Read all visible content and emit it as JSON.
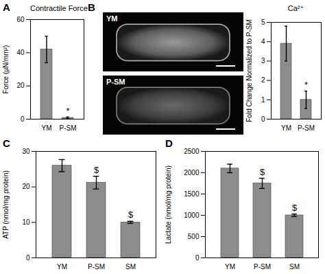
{
  "chart_data": [
    {
      "type": "bar",
      "panel": "A",
      "title": "Contractile Force",
      "y_label": "Force (μN/mm²)",
      "categories": [
        "YM",
        "P-SM"
      ],
      "values": [
        42,
        0.8
      ],
      "errors": [
        8,
        0.5
      ],
      "color": "#8c8c8c",
      "ylim": [
        0,
        60
      ],
      "yticks": [
        0,
        20,
        40,
        60
      ],
      "annotations": [
        {
          "category": "P-SM",
          "text": "*"
        }
      ]
    },
    {
      "type": "image",
      "panel": "B",
      "labels": [
        "YM",
        "P-SM"
      ]
    },
    {
      "type": "bar",
      "title": "Ca²⁺",
      "y_label": "Fold Change Normalized to P-SM",
      "categories": [
        "YM",
        "P-SM"
      ],
      "values": [
        3.9,
        1.0
      ],
      "errors": [
        0.9,
        0.45
      ],
      "color": "#8c8c8c",
      "ylim": [
        0,
        5
      ],
      "yticks": [
        0,
        1,
        2,
        3,
        4,
        5
      ],
      "annotations": [
        {
          "category": "P-SM",
          "text": "*"
        }
      ]
    },
    {
      "type": "bar",
      "panel": "C",
      "y_label": "ATP (nmol/mg protein)",
      "categories": [
        "YM",
        "P-SM",
        "SM"
      ],
      "values": [
        26,
        21.2,
        10
      ],
      "errors": [
        1.7,
        1.8,
        0.3
      ],
      "color": "#8c8c8c",
      "ylim": [
        0,
        30
      ],
      "yticks": [
        0,
        10,
        20,
        30
      ],
      "annotations": [
        {
          "category": "P-SM",
          "text": "$"
        },
        {
          "category": "SM",
          "text": "$"
        }
      ]
    },
    {
      "type": "bar",
      "panel": "D",
      "y_label": "Lactate (nmol/mg protein)",
      "categories": [
        "YM",
        "P-SM",
        "SM"
      ],
      "values": [
        2100,
        1750,
        1000
      ],
      "errors": [
        100,
        120,
        30
      ],
      "color": "#8c8c8c",
      "ylim": [
        0,
        2500
      ],
      "yticks": [
        0,
        500,
        1000,
        1500,
        2000,
        2500
      ],
      "annotations": [
        {
          "category": "P-SM",
          "text": "$"
        },
        {
          "category": "SM",
          "text": "$"
        }
      ]
    }
  ]
}
